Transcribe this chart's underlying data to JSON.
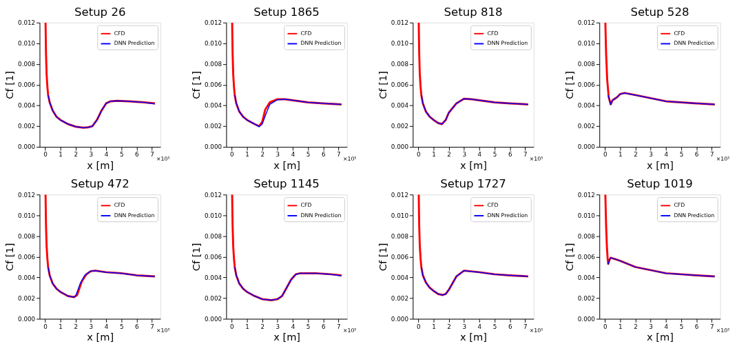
{
  "chart_data": [
    {
      "type": "line",
      "title": "Setup 26",
      "xlabel": "x [m]",
      "ylabel": "Cf [1]",
      "xlim": [
        -0.36,
        7.56
      ],
      "ylim": [
        0,
        0.012
      ],
      "xticks": [
        0,
        1,
        2,
        3,
        4,
        5,
        6,
        7
      ],
      "yticks": [
        {
          "value": 0,
          "label": "0.000"
        },
        {
          "value": 0.002,
          "label": "0.002"
        },
        {
          "value": 0.004,
          "label": "0.004"
        },
        {
          "value": 0.006,
          "label": "0.006"
        },
        {
          "value": 0.008,
          "label": "0.008"
        },
        {
          "value": 0.01,
          "label": "0.010"
        },
        {
          "value": 0.012,
          "label": "0.012"
        }
      ],
      "grid": false,
      "legend": "top right",
      "annotations": [
        "×10⁵"
      ],
      "series": [
        {
          "name": "CFD",
          "color": "#ff0000",
          "x": [
            0.03,
            0.06,
            0.1,
            0.15,
            0.2,
            0.3,
            0.5,
            0.75,
            1,
            1.5,
            2,
            2.5,
            2.8,
            3.1,
            3.4,
            3.7,
            4,
            4.3,
            4.7,
            5.5,
            6.5,
            7.2
          ],
          "values": [
            0.012,
            0.009,
            0.007,
            0.0058,
            0.005,
            0.0043,
            0.0035,
            0.0029,
            0.0026,
            0.0022,
            0.00195,
            0.00185,
            0.00188,
            0.002,
            0.0026,
            0.0035,
            0.0042,
            0.0044,
            0.00445,
            0.0044,
            0.0043,
            0.0042
          ]
        },
        {
          "name": "DNN Prediction",
          "color": "#0000ff",
          "x": [
            0.2,
            0.3,
            0.5,
            0.75,
            1,
            1.5,
            2,
            2.5,
            2.8,
            3.1,
            3.4,
            3.7,
            4,
            4.3,
            4.7,
            5.5,
            6.5,
            7.2
          ],
          "values": [
            0.005,
            0.0043,
            0.0035,
            0.0029,
            0.0026,
            0.0022,
            0.00195,
            0.00185,
            0.00188,
            0.002,
            0.0026,
            0.0035,
            0.0042,
            0.0044,
            0.00445,
            0.0044,
            0.0043,
            0.00415
          ]
        }
      ]
    },
    {
      "type": "line",
      "title": "Setup 1865",
      "xlabel": "x [m]",
      "ylabel": "Cf [1]",
      "xlim": [
        -0.36,
        7.56
      ],
      "ylim": [
        0,
        0.012
      ],
      "xticks": [
        0,
        1,
        2,
        3,
        4,
        5,
        6,
        7
      ],
      "yticks": [
        {
          "value": 0,
          "label": "0.000"
        },
        {
          "value": 0.002,
          "label": "0.002"
        },
        {
          "value": 0.004,
          "label": "0.004"
        },
        {
          "value": 0.006,
          "label": "0.006"
        },
        {
          "value": 0.008,
          "label": "0.008"
        },
        {
          "value": 0.01,
          "label": "0.010"
        },
        {
          "value": 0.012,
          "label": "0.012"
        }
      ],
      "grid": false,
      "legend": "top right",
      "annotations": [
        "×10⁵"
      ],
      "series": [
        {
          "name": "CFD",
          "color": "#ff0000",
          "x": [
            0.03,
            0.06,
            0.1,
            0.15,
            0.2,
            0.3,
            0.5,
            0.75,
            1,
            1.5,
            1.8,
            2,
            2.2,
            2.5,
            3,
            3.5,
            4,
            5,
            6,
            7.2
          ],
          "values": [
            0.012,
            0.009,
            0.007,
            0.0058,
            0.005,
            0.0042,
            0.0034,
            0.0029,
            0.0026,
            0.0022,
            0.002,
            0.0024,
            0.0036,
            0.0043,
            0.0046,
            0.0046,
            0.0045,
            0.0043,
            0.0042,
            0.0041
          ]
        },
        {
          "name": "DNN Prediction",
          "color": "#0000ff",
          "x": [
            0.2,
            0.3,
            0.5,
            0.75,
            1,
            1.5,
            1.8,
            2,
            2.2,
            2.5,
            3,
            3.5,
            4,
            5,
            6,
            7.2
          ],
          "values": [
            0.005,
            0.0042,
            0.0034,
            0.0029,
            0.0026,
            0.0022,
            0.00195,
            0.0022,
            0.003,
            0.0041,
            0.00455,
            0.0046,
            0.0045,
            0.0043,
            0.0042,
            0.0041
          ]
        }
      ]
    },
    {
      "type": "line",
      "title": "Setup 818",
      "xlabel": "x [m]",
      "ylabel": "Cf [1]",
      "xlim": [
        -0.36,
        7.56
      ],
      "ylim": [
        0,
        0.012
      ],
      "xticks": [
        0,
        1,
        2,
        3,
        4,
        5,
        6,
        7
      ],
      "yticks": [
        {
          "value": 0,
          "label": "0.000"
        },
        {
          "value": 0.002,
          "label": "0.002"
        },
        {
          "value": 0.004,
          "label": "0.004"
        },
        {
          "value": 0.006,
          "label": "0.006"
        },
        {
          "value": 0.008,
          "label": "0.008"
        },
        {
          "value": 0.01,
          "label": "0.010"
        },
        {
          "value": 0.012,
          "label": "0.012"
        }
      ],
      "grid": false,
      "legend": "top right",
      "annotations": [
        "×10⁵"
      ],
      "series": [
        {
          "name": "CFD",
          "color": "#ff0000",
          "x": [
            0.03,
            0.06,
            0.1,
            0.15,
            0.2,
            0.3,
            0.5,
            0.75,
            1,
            1.3,
            1.55,
            1.8,
            2,
            2.5,
            3,
            3.5,
            4,
            5,
            6,
            7.2
          ],
          "values": [
            0.012,
            0.009,
            0.007,
            0.0058,
            0.005,
            0.0042,
            0.0034,
            0.0029,
            0.0026,
            0.0023,
            0.0022,
            0.0026,
            0.0033,
            0.0042,
            0.00465,
            0.0046,
            0.0045,
            0.0043,
            0.0042,
            0.0041
          ]
        },
        {
          "name": "DNN Prediction",
          "color": "#0000ff",
          "x": [
            0.2,
            0.3,
            0.5,
            0.75,
            1,
            1.3,
            1.55,
            1.8,
            2,
            2.5,
            3,
            3.5,
            4,
            5,
            6,
            7.2
          ],
          "values": [
            0.005,
            0.0042,
            0.0034,
            0.0029,
            0.0026,
            0.0023,
            0.0022,
            0.0026,
            0.0033,
            0.0042,
            0.00465,
            0.0046,
            0.0045,
            0.0043,
            0.0042,
            0.0041
          ]
        }
      ]
    },
    {
      "type": "line",
      "title": "Setup 528",
      "xlabel": "x [m]",
      "ylabel": "Cf [1]",
      "xlim": [
        -0.36,
        7.56
      ],
      "ylim": [
        0,
        0.012
      ],
      "xticks": [
        0,
        1,
        2,
        3,
        4,
        5,
        6,
        7
      ],
      "yticks": [
        {
          "value": 0,
          "label": "0.000"
        },
        {
          "value": 0.002,
          "label": "0.002"
        },
        {
          "value": 0.004,
          "label": "0.004"
        },
        {
          "value": 0.006,
          "label": "0.006"
        },
        {
          "value": 0.008,
          "label": "0.008"
        },
        {
          "value": 0.01,
          "label": "0.010"
        },
        {
          "value": 0.012,
          "label": "0.012"
        }
      ],
      "grid": false,
      "legend": "top right",
      "annotations": [
        "×10⁵"
      ],
      "series": [
        {
          "name": "CFD",
          "color": "#ff0000",
          "x": [
            0.03,
            0.08,
            0.15,
            0.25,
            0.38,
            0.5,
            0.6,
            0.8,
            1,
            1.3,
            2,
            3,
            4,
            5,
            6,
            7.2
          ],
          "values": [
            0.012,
            0.009,
            0.0065,
            0.0048,
            0.0041,
            0.0045,
            0.0046,
            0.0048,
            0.0051,
            0.0052,
            0.005,
            0.0047,
            0.0044,
            0.0043,
            0.0042,
            0.0041
          ]
        },
        {
          "name": "DNN Prediction",
          "color": "#0000ff",
          "x": [
            0.22,
            0.3,
            0.38,
            0.5,
            0.6,
            0.8,
            1,
            1.3,
            2,
            3,
            4,
            5,
            6,
            7.2
          ],
          "values": [
            0.005,
            0.0045,
            0.0041,
            0.0045,
            0.0046,
            0.0048,
            0.0051,
            0.0052,
            0.005,
            0.0047,
            0.0044,
            0.0043,
            0.0042,
            0.0041
          ]
        }
      ]
    },
    {
      "type": "line",
      "title": "Setup 472",
      "xlabel": "x [m]",
      "ylabel": "Cf [1]",
      "xlim": [
        -0.36,
        7.56
      ],
      "ylim": [
        0,
        0.012
      ],
      "xticks": [
        0,
        1,
        2,
        3,
        4,
        5,
        6,
        7
      ],
      "yticks": [
        {
          "value": 0,
          "label": "0.000"
        },
        {
          "value": 0.002,
          "label": "0.002"
        },
        {
          "value": 0.004,
          "label": "0.004"
        },
        {
          "value": 0.006,
          "label": "0.006"
        },
        {
          "value": 0.008,
          "label": "0.008"
        },
        {
          "value": 0.01,
          "label": "0.010"
        },
        {
          "value": 0.012,
          "label": "0.012"
        }
      ],
      "grid": false,
      "legend": "top right",
      "annotations": [
        "×10⁵"
      ],
      "series": [
        {
          "name": "CFD",
          "color": "#ff0000",
          "x": [
            0.03,
            0.06,
            0.1,
            0.15,
            0.2,
            0.3,
            0.5,
            0.75,
            1,
            1.5,
            1.9,
            2.1,
            2.4,
            2.7,
            3,
            3.3,
            4,
            5,
            6,
            7.2
          ],
          "values": [
            0.012,
            0.009,
            0.007,
            0.0058,
            0.005,
            0.0042,
            0.0034,
            0.0029,
            0.0026,
            0.0022,
            0.0021,
            0.0023,
            0.0036,
            0.0043,
            0.0046,
            0.00465,
            0.0045,
            0.0044,
            0.0042,
            0.0041
          ]
        },
        {
          "name": "DNN Prediction",
          "color": "#0000ff",
          "x": [
            0.2,
            0.3,
            0.5,
            0.75,
            1,
            1.5,
            1.9,
            2,
            2.3,
            2.6,
            3,
            3.3,
            4,
            5,
            6,
            7.2
          ],
          "values": [
            0.005,
            0.0042,
            0.0034,
            0.0029,
            0.0026,
            0.0022,
            0.0021,
            0.0022,
            0.0034,
            0.0042,
            0.00462,
            0.00465,
            0.0045,
            0.0044,
            0.0042,
            0.0041
          ]
        }
      ]
    },
    {
      "type": "line",
      "title": "Setup 1145",
      "xlabel": "x [m]",
      "ylabel": "Cf [1]",
      "xlim": [
        -0.36,
        7.56
      ],
      "ylim": [
        0,
        0.012
      ],
      "xticks": [
        0,
        1,
        2,
        3,
        4,
        5,
        6,
        7
      ],
      "yticks": [
        {
          "value": 0,
          "label": "0.000"
        },
        {
          "value": 0.002,
          "label": "0.002"
        },
        {
          "value": 0.004,
          "label": "0.004"
        },
        {
          "value": 0.006,
          "label": "0.006"
        },
        {
          "value": 0.008,
          "label": "0.008"
        },
        {
          "value": 0.01,
          "label": "0.010"
        },
        {
          "value": 0.012,
          "label": "0.012"
        }
      ],
      "grid": false,
      "legend": "top right",
      "annotations": [
        "×10⁵"
      ],
      "series": [
        {
          "name": "CFD",
          "color": "#ff0000",
          "x": [
            0.03,
            0.06,
            0.1,
            0.15,
            0.2,
            0.3,
            0.5,
            0.75,
            1,
            1.5,
            2,
            2.6,
            3,
            3.3,
            3.6,
            3.9,
            4.2,
            4.5,
            5.5,
            6.5,
            7.2
          ],
          "values": [
            0.012,
            0.009,
            0.007,
            0.0058,
            0.005,
            0.0042,
            0.0034,
            0.0029,
            0.0026,
            0.0022,
            0.0019,
            0.0018,
            0.0019,
            0.0022,
            0.003,
            0.0038,
            0.0043,
            0.0044,
            0.0044,
            0.0043,
            0.0042
          ]
        },
        {
          "name": "DNN Prediction",
          "color": "#0000ff",
          "x": [
            0.2,
            0.3,
            0.5,
            0.75,
            1,
            1.5,
            2,
            2.6,
            3,
            3.3,
            3.6,
            3.9,
            4.2,
            4.5,
            5.5,
            6.5,
            7.2
          ],
          "values": [
            0.005,
            0.0042,
            0.0034,
            0.0029,
            0.0026,
            0.0022,
            0.0019,
            0.0018,
            0.0019,
            0.0022,
            0.003,
            0.0038,
            0.0043,
            0.0044,
            0.0044,
            0.0043,
            0.00415
          ]
        }
      ]
    },
    {
      "type": "line",
      "title": "Setup 1727",
      "xlabel": "x [m]",
      "ylabel": "Cf [1]",
      "xlim": [
        -0.36,
        7.56
      ],
      "ylim": [
        0,
        0.012
      ],
      "xticks": [
        0,
        1,
        2,
        3,
        4,
        5,
        6,
        7
      ],
      "yticks": [
        {
          "value": 0,
          "label": "0.000"
        },
        {
          "value": 0.002,
          "label": "0.002"
        },
        {
          "value": 0.004,
          "label": "0.004"
        },
        {
          "value": 0.006,
          "label": "0.006"
        },
        {
          "value": 0.008,
          "label": "0.008"
        },
        {
          "value": 0.01,
          "label": "0.010"
        },
        {
          "value": 0.012,
          "label": "0.012"
        }
      ],
      "grid": false,
      "legend": "top right",
      "annotations": [
        "×10⁵"
      ],
      "series": [
        {
          "name": "CFD",
          "color": "#ff0000",
          "x": [
            0.03,
            0.06,
            0.1,
            0.15,
            0.2,
            0.3,
            0.5,
            0.75,
            1,
            1.3,
            1.6,
            1.8,
            2,
            2.5,
            3,
            4,
            5,
            6,
            7.2
          ],
          "values": [
            0.012,
            0.009,
            0.007,
            0.0058,
            0.005,
            0.0042,
            0.0035,
            0.003,
            0.0027,
            0.0024,
            0.0023,
            0.0024,
            0.0028,
            0.0041,
            0.00465,
            0.0045,
            0.0043,
            0.0042,
            0.0041
          ]
        },
        {
          "name": "DNN Prediction",
          "color": "#0000ff",
          "x": [
            0.2,
            0.3,
            0.5,
            0.75,
            1,
            1.3,
            1.6,
            1.8,
            2,
            2.5,
            3,
            4,
            5,
            6,
            7.2
          ],
          "values": [
            0.005,
            0.0042,
            0.0035,
            0.003,
            0.0027,
            0.0024,
            0.0023,
            0.0024,
            0.0028,
            0.0041,
            0.00465,
            0.0045,
            0.0043,
            0.0042,
            0.0041
          ]
        }
      ]
    },
    {
      "type": "line",
      "title": "Setup 1019",
      "xlabel": "x [m]",
      "ylabel": "Cf [1]",
      "xlim": [
        -0.36,
        7.56
      ],
      "ylim": [
        0,
        0.012
      ],
      "xticks": [
        0,
        1,
        2,
        3,
        4,
        5,
        6,
        7
      ],
      "yticks": [
        {
          "value": 0,
          "label": "0.000"
        },
        {
          "value": 0.002,
          "label": "0.002"
        },
        {
          "value": 0.004,
          "label": "0.004"
        },
        {
          "value": 0.006,
          "label": "0.006"
        },
        {
          "value": 0.008,
          "label": "0.008"
        },
        {
          "value": 0.01,
          "label": "0.010"
        },
        {
          "value": 0.012,
          "label": "0.012"
        }
      ],
      "grid": false,
      "legend": "top right",
      "annotations": [
        "×10⁵"
      ],
      "series": [
        {
          "name": "CFD",
          "color": "#ff0000",
          "x": [
            0.03,
            0.08,
            0.13,
            0.18,
            0.22,
            0.3,
            0.38,
            0.6,
            1,
            2,
            3,
            4,
            5,
            6,
            7.2
          ],
          "values": [
            0.012,
            0.009,
            0.007,
            0.0058,
            0.0053,
            0.0057,
            0.0059,
            0.0058,
            0.0056,
            0.005,
            0.0047,
            0.0044,
            0.0043,
            0.0042,
            0.0041
          ]
        },
        {
          "name": "DNN Prediction",
          "color": "#0000ff",
          "x": [
            0.2,
            0.22,
            0.3,
            0.38,
            0.6,
            1,
            2,
            3,
            4,
            5,
            6,
            7.2
          ],
          "values": [
            0.0055,
            0.0053,
            0.0057,
            0.0059,
            0.0058,
            0.0056,
            0.005,
            0.0047,
            0.0044,
            0.0043,
            0.0042,
            0.0041
          ]
        }
      ]
    }
  ]
}
